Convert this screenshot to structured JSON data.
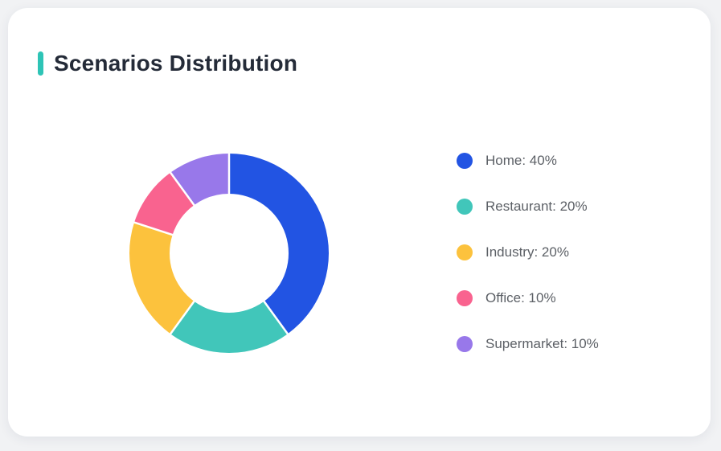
{
  "page": {
    "background": "#f1f2f4"
  },
  "card": {
    "title": "Scenarios Distribution",
    "accent_color": "#2ec4b6",
    "background": "#ffffff"
  },
  "chart_data": {
    "type": "pie",
    "subtype": "donut",
    "title": "Scenarios Distribution",
    "categories": [
      "Home",
      "Restaurant",
      "Industry",
      "Office",
      "Supermarket"
    ],
    "values": [
      40,
      20,
      20,
      10,
      10
    ],
    "unit": "%",
    "colors": [
      "#2254e3",
      "#41c6ba",
      "#fcc23d",
      "#f9638f",
      "#9878ea"
    ],
    "legend_labels": [
      "Home: 40%",
      "Restaurant: 20%",
      "Industry: 20%",
      "Office: 10%",
      "Supermarket: 10%"
    ],
    "legend_position": "right",
    "start_angle_deg": 0,
    "direction": "clockwise",
    "inner_radius_ratio": 0.6,
    "slice_border_color": "#ffffff"
  }
}
